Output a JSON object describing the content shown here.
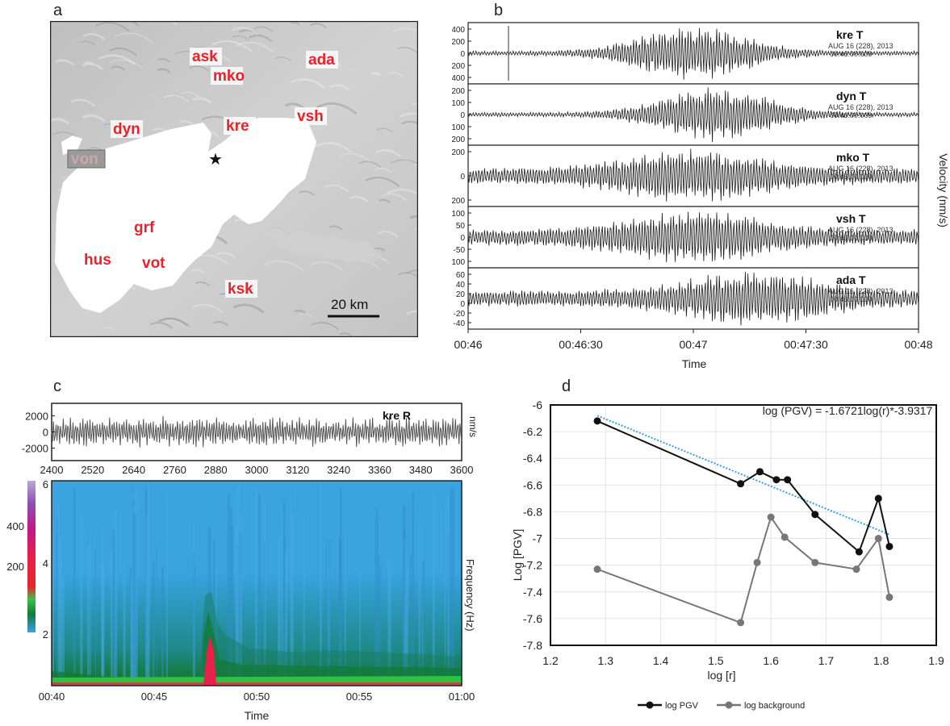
{
  "panels": {
    "a": "a",
    "b": "b",
    "c": "c",
    "d": "d"
  },
  "map": {
    "stations": [
      {
        "id": "ask",
        "label": "ask"
      },
      {
        "id": "mko",
        "label": "mko"
      },
      {
        "id": "ada",
        "label": "ada"
      },
      {
        "id": "dyn",
        "label": "dyn"
      },
      {
        "id": "kre",
        "label": "kre"
      },
      {
        "id": "vsh",
        "label": "vsh"
      },
      {
        "id": "von",
        "label": "von"
      },
      {
        "id": "grf",
        "label": "grf"
      },
      {
        "id": "hus",
        "label": "hus"
      },
      {
        "id": "vot",
        "label": "vot"
      },
      {
        "id": "ksk",
        "label": "ksk"
      }
    ],
    "scale_label": "20 km",
    "star": "★"
  },
  "waveforms": {
    "ylabel": "Velocity (nm/s)",
    "xlabel": "Time",
    "xticks": [
      "00:46",
      "00:46:30",
      "00:47",
      "00:47:30",
      "00:48"
    ],
    "traces": [
      {
        "name": "kre T",
        "date": "AUG 16 (228), 2013",
        "time": "00:46:00.000",
        "yticks": [
          "400",
          "200",
          "0",
          "-200",
          "-400"
        ]
      },
      {
        "name": "dyn T",
        "date": "AUG 16 (228), 2013",
        "time": "00:46:00.000",
        "yticks": [
          "200",
          "100",
          "0",
          "-100",
          "-200"
        ]
      },
      {
        "name": "mko T",
        "date": "AUG 16 (228), 2013",
        "time": "00:46:00.000",
        "yticks": [
          "200",
          "0",
          "-200"
        ]
      },
      {
        "name": "vsh T",
        "date": "AUG 16 (228), 2013",
        "time": "00:46:00.000",
        "yticks": [
          "100",
          "50",
          "0",
          "-50",
          "-100"
        ]
      },
      {
        "name": "ada T",
        "date": "AUG 16 (228), 2013",
        "time": "00:46:00.000",
        "yticks": [
          "60",
          "40",
          "20",
          "0",
          "-20",
          "-40"
        ]
      }
    ]
  },
  "spectrogram": {
    "trace_label": "kre R",
    "trace_unit": "nm/s",
    "trace_yticks": [
      "2000",
      "0",
      "-2000"
    ],
    "trace_xticks": [
      "2400",
      "2520",
      "2640",
      "2760",
      "2880",
      "3000",
      "3120",
      "3240",
      "3360",
      "3480",
      "3600"
    ],
    "ylabel": "Frequency (Hz)",
    "yticks": [
      "6",
      "4",
      "2"
    ],
    "colorbar_ticks": [
      "400",
      "200"
    ],
    "xlabel": "Time",
    "xticks": [
      "00:40",
      "00:45",
      "00:50",
      "00:55",
      "01:00"
    ]
  },
  "chart_data": {
    "type": "line",
    "equation": "log (PGV) = -1.6721log(r)*-3.9317",
    "xlabel": "log [r]",
    "ylabel": "Log [PGV]",
    "xlim": [
      1.2,
      1.9
    ],
    "ylim": [
      -7.8,
      -6
    ],
    "xticks": [
      "1.2",
      "1.3",
      "1.4",
      "1.5",
      "1.6",
      "1.7",
      "1.8",
      "1.9"
    ],
    "yticks": [
      "-6",
      "-6.2",
      "-6.4",
      "-6.6",
      "-6.8",
      "-7",
      "-7.2",
      "-7.4",
      "-7.6",
      "-7.8"
    ],
    "grid": true,
    "legend_position": "bottom",
    "series": [
      {
        "name": "log PGV",
        "color": "#111111",
        "x": [
          1.285,
          1.545,
          1.58,
          1.61,
          1.63,
          1.68,
          1.76,
          1.795,
          1.815
        ],
        "y": [
          -6.12,
          -6.59,
          -6.5,
          -6.56,
          -6.56,
          -6.82,
          -7.1,
          -6.7,
          -7.06
        ]
      },
      {
        "name": "log background",
        "color": "#777777",
        "x": [
          1.285,
          1.545,
          1.575,
          1.6,
          1.625,
          1.68,
          1.755,
          1.795,
          1.815
        ],
        "y": [
          -7.23,
          -7.63,
          -7.18,
          -6.84,
          -6.99,
          -7.18,
          -7.23,
          -7.0,
          -7.44
        ]
      }
    ],
    "fit": {
      "color": "#3aa0e6",
      "x": [
        1.285,
        1.815
      ],
      "y": [
        -6.08,
        -6.97
      ]
    }
  }
}
